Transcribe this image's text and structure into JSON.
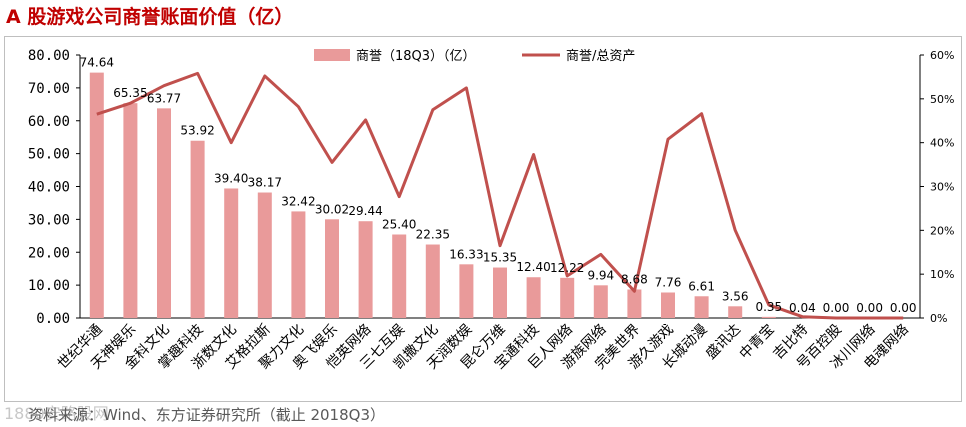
{
  "title": "A 股游戏公司商誉账面价值（亿）",
  "source": "资料来源：Wind、东方证券研究所（截止 2018Q3）",
  "watermark": "1880安路股网",
  "colors": {
    "bar": "#e99a9a",
    "line": "#c0504d",
    "title": "#c00000"
  },
  "chart_data": {
    "type": "bar",
    "categories": [
      "世纪华通",
      "天神娱乐",
      "金科文化",
      "掌趣科技",
      "浙数文化",
      "艾格拉斯",
      "聚力文化",
      "奥飞娱乐",
      "恺英网络",
      "三七互娱",
      "凯撒文化",
      "天润数娱",
      "昆仑万维",
      "宝通科技",
      "巨人网络",
      "游族网络",
      "完美世界",
      "游久游戏",
      "长城动漫",
      "盛讯达",
      "中青宝",
      "吉比特",
      "号百控股",
      "冰川网络",
      "电魂网络"
    ],
    "series": [
      {
        "name": "商誉（18Q3）（亿）",
        "type": "bar",
        "axis": "left",
        "values": [
          74.64,
          65.35,
          63.77,
          53.92,
          39.4,
          38.17,
          32.42,
          30.02,
          29.44,
          25.4,
          22.35,
          16.33,
          15.35,
          12.4,
          12.22,
          9.94,
          8.68,
          7.76,
          6.61,
          3.56,
          0.35,
          0.04,
          0.0,
          0.0,
          0.0
        ],
        "labels": [
          "74.64",
          "65.35",
          "63.77",
          "53.92",
          "39.40",
          "38.17",
          "32.42",
          "30.02",
          "29.44",
          "25.40",
          "22.35",
          "16.33",
          "15.35",
          "12.40",
          "12.22",
          "9.94",
          "8.68",
          "7.76",
          "6.61",
          "3.56",
          "0.35",
          "0.04",
          "0.00",
          "0.00",
          "0.00"
        ]
      },
      {
        "name": "商誉/总资产",
        "type": "line",
        "axis": "right",
        "values": [
          46.5,
          49.0,
          53.0,
          55.8,
          40.0,
          55.2,
          48.2,
          35.5,
          45.2,
          27.7,
          47.5,
          52.5,
          16.5,
          37.3,
          9.6,
          14.5,
          6.1,
          40.8,
          46.6,
          20.0,
          3.0,
          0.3,
          0.0,
          0.0,
          0.0
        ]
      }
    ],
    "y_left": {
      "min": 0,
      "max": 80,
      "ticks": [
        "0.00",
        "10.00",
        "20.00",
        "30.00",
        "40.00",
        "50.00",
        "60.00",
        "70.00",
        "80.00"
      ]
    },
    "y_right": {
      "min": 0,
      "max": 60,
      "ticks": [
        "0%",
        "10%",
        "20%",
        "30%",
        "40%",
        "50%",
        "60%"
      ]
    },
    "legend_position": "top-center",
    "grid": false
  }
}
